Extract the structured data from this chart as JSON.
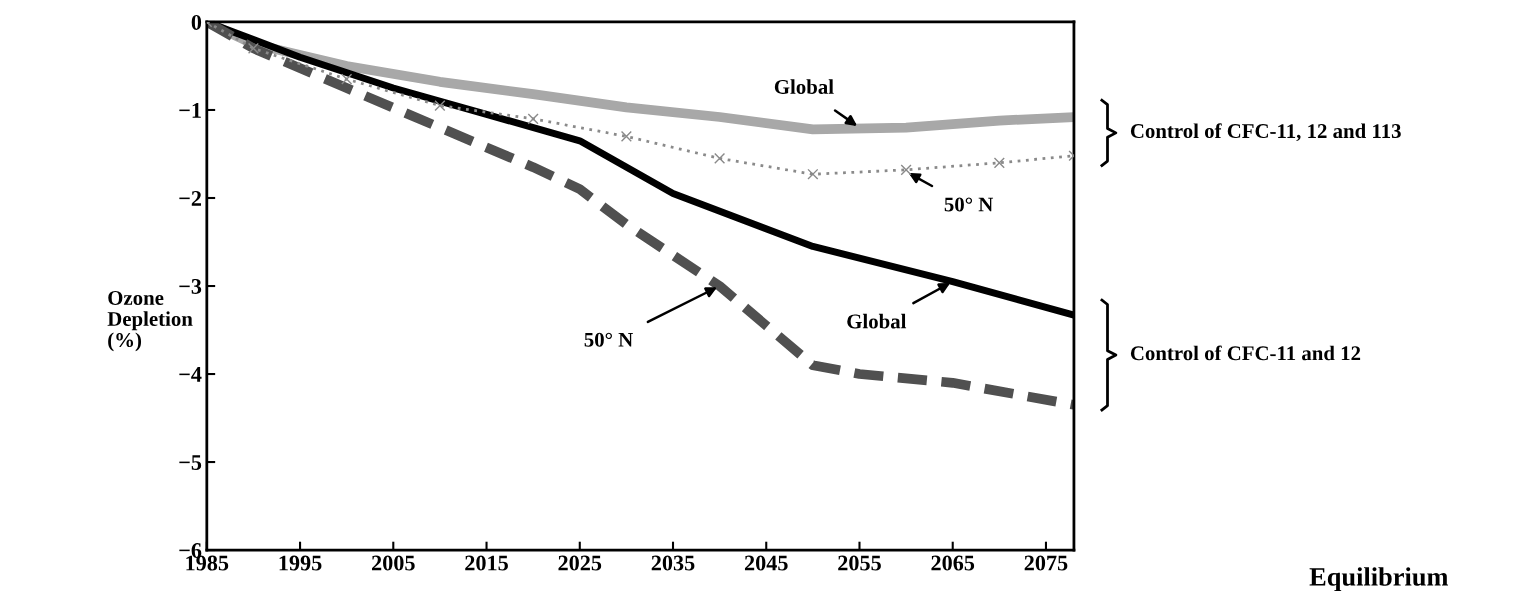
{
  "chart_data": {
    "type": "line",
    "xlabel": null,
    "ylabel": "Ozone\nDepletion\n(%)",
    "xlim": [
      1985,
      2078
    ],
    "xticks": [
      1985,
      1995,
      2005,
      2015,
      2025,
      2035,
      2045,
      2055,
      2065,
      2075
    ],
    "ylim": [
      -6,
      0
    ],
    "yticks": [
      -6,
      -5,
      -4,
      -3,
      -2,
      -1,
      0
    ],
    "grid": false,
    "legend": false,
    "series": [
      {
        "color": "#a8a8a8",
        "line_style": "solid",
        "marker": "none",
        "x": [
          1985,
          1990,
          2000,
          2010,
          2020,
          2030,
          2040,
          2050,
          2060,
          2070,
          2078
        ],
        "values": [
          0,
          -0.25,
          -0.5,
          -0.68,
          -0.82,
          -0.97,
          -1.08,
          -1.22,
          -1.2,
          -1.12,
          -1.08
        ]
      },
      {
        "color": "#8a8a8a",
        "line_style": "dotted",
        "marker": "cross",
        "x": [
          1985,
          1990,
          2000,
          2010,
          2020,
          2030,
          2040,
          2050,
          2060,
          2070,
          2078
        ],
        "values": [
          0,
          -0.3,
          -0.65,
          -0.95,
          -1.1,
          -1.3,
          -1.55,
          -1.73,
          -1.68,
          -1.6,
          -1.52
        ]
      },
      {
        "color": "#000000",
        "line_style": "solid",
        "marker": "none",
        "x": [
          1985,
          1995,
          2005,
          2015,
          2025,
          2035,
          2050,
          2065,
          2078
        ],
        "values": [
          0,
          -0.4,
          -0.75,
          -1.05,
          -1.35,
          -1.95,
          -2.55,
          -2.95,
          -3.33
        ]
      },
      {
        "color": "#505050",
        "line_style": "dashed",
        "marker": "none",
        "x": [
          1985,
          1990,
          2000,
          2010,
          2020,
          2025,
          2030,
          2040,
          2045,
          2050,
          2055,
          2065,
          2078
        ],
        "values": [
          0,
          -0.3,
          -0.75,
          -1.2,
          -1.65,
          -1.9,
          -2.3,
          -3.0,
          -3.45,
          -3.9,
          -4.0,
          -4.1,
          -4.35
        ]
      }
    ],
    "annotations": [
      {
        "text": "Global",
        "x": 2055,
        "y": -1.2
      },
      {
        "text": "50° N",
        "x": 2060,
        "y": -1.7
      },
      {
        "text": "Global",
        "x": 2065,
        "y": -2.95
      },
      {
        "text": "50° N",
        "x": 2040,
        "y": -3.0
      },
      "Control of CFC-11, 12 and 113",
      "Control of CFC-11 and 12",
      "Equilibrium"
    ]
  }
}
